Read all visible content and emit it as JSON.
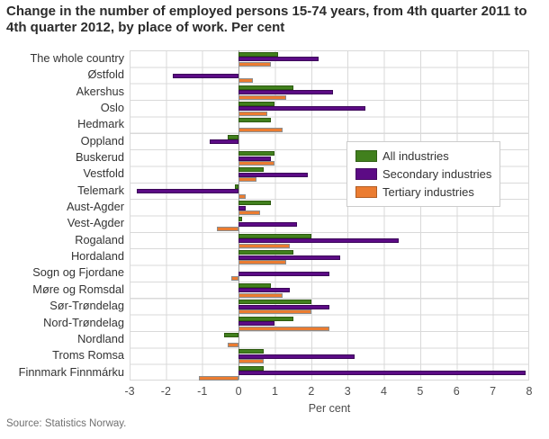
{
  "title": "Change in the number of employed persons 15-74 years, from 4th quarter 2011 to 4th quarter 2012, by place of work. Per cent",
  "source": "Source: Statistics Norway.",
  "colors": {
    "all_industries": "#41801d",
    "all_industries_border": "#2d5a10",
    "secondary_industries": "#5c0b85",
    "secondary_industries_border": "#3c0659",
    "tertiary_industries": "#eb7c31",
    "tertiary_industries_border": "#8c8c8c",
    "gridline": "#d9d9d9",
    "zero_line": "#999999"
  },
  "chart_data": {
    "type": "bar",
    "orientation": "horizontal",
    "title": "Change in the number of employed persons 15-74 years, from 4th quarter 2011 to 4th quarter 2012, by place of work. Per cent",
    "xlabel": "Per cent",
    "ylabel": "",
    "xlim": [
      -3,
      8
    ],
    "xticks": [
      -3,
      -2,
      -1,
      0,
      1,
      2,
      3,
      4,
      5,
      6,
      7,
      8
    ],
    "grid": true,
    "legend_position": "inside-right",
    "categories": [
      "The whole country",
      "Østfold",
      "Akershus",
      "Oslo",
      "Hedmark",
      "Oppland",
      "Buskerud",
      "Vestfold",
      "Telemark",
      "Aust-Agder",
      "Vest-Agder",
      "Rogaland",
      "Hordaland",
      "Sogn og Fjordane",
      "Møre og Romsdal",
      "Sør-Trøndelag",
      "Nord-Trøndelag",
      "Nordland",
      "Troms Romsa",
      "Finnmark Finnmárku"
    ],
    "series": [
      {
        "name": "All industries",
        "color": "#41801d",
        "border": "#2d5a10",
        "values": [
          1.1,
          0.0,
          1.5,
          1.0,
          0.9,
          -0.3,
          1.0,
          0.7,
          -0.1,
          0.9,
          0.1,
          2.0,
          1.5,
          0.0,
          0.9,
          2.0,
          1.5,
          -0.4,
          0.7,
          0.7
        ]
      },
      {
        "name": "Secondary industries",
        "color": "#5c0b85",
        "border": "#3c0659",
        "values": [
          2.2,
          -1.8,
          2.6,
          3.5,
          0.0,
          -0.8,
          0.9,
          1.9,
          -2.8,
          0.2,
          1.6,
          4.4,
          2.8,
          2.5,
          1.4,
          2.5,
          1.0,
          0.0,
          3.2,
          7.9
        ]
      },
      {
        "name": "Tertiary industries",
        "color": "#eb7c31",
        "border": "#8c8c8c",
        "values": [
          0.9,
          0.4,
          1.3,
          0.8,
          1.2,
          0.0,
          1.0,
          0.5,
          0.2,
          0.6,
          -0.6,
          1.4,
          1.3,
          -0.2,
          1.2,
          2.0,
          2.5,
          -0.3,
          0.7,
          -1.1
        ]
      }
    ]
  }
}
